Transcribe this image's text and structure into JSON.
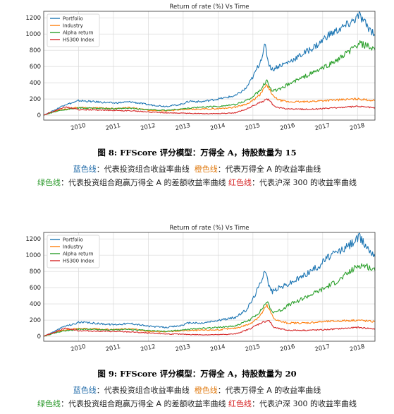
{
  "chart_data": [
    {
      "type": "line",
      "title": "Return of rate (%) Vs Time",
      "xlabel": "",
      "ylabel": "",
      "x_ticks": [
        "2010",
        "2011",
        "2012",
        "2013",
        "2014",
        "2015",
        "2016",
        "2017",
        "2018"
      ],
      "xlim": [
        2009.0,
        2018.5
      ],
      "ylim": [
        -60,
        1280
      ],
      "y_ticks": [
        0,
        200,
        400,
        600,
        800,
        1000,
        1200
      ],
      "grid": true,
      "legend": "top-left",
      "series": [
        {
          "name": "Portfolio",
          "color": "#1f77b4",
          "x": [
            2009.0,
            2009.3,
            2009.6,
            2009.9,
            2010.0,
            2010.5,
            2011.0,
            2011.5,
            2012.0,
            2012.5,
            2012.9,
            2013.2,
            2013.5,
            2014.0,
            2014.5,
            2014.8,
            2015.0,
            2015.2,
            2015.35,
            2015.45,
            2015.55,
            2015.7,
            2016.0,
            2016.3,
            2016.6,
            2016.9,
            2017.1,
            2017.4,
            2017.7,
            2017.9,
            2018.05,
            2018.2,
            2018.35,
            2018.5
          ],
          "y": [
            0,
            60,
            130,
            160,
            180,
            165,
            150,
            165,
            130,
            110,
            130,
            175,
            165,
            200,
            240,
            330,
            470,
            650,
            860,
            640,
            560,
            600,
            650,
            720,
            800,
            880,
            970,
            1040,
            1110,
            1170,
            1230,
            1140,
            1060,
            1000
          ]
        },
        {
          "name": "Industry",
          "color": "#ff7f0e",
          "x": [
            2009.0,
            2009.4,
            2009.9,
            2010.5,
            2011.0,
            2011.5,
            2012.0,
            2012.5,
            2013.0,
            2013.5,
            2014.0,
            2014.5,
            2014.9,
            2015.2,
            2015.4,
            2015.6,
            2015.8,
            2016.0,
            2016.5,
            2017.0,
            2017.5,
            2018.0,
            2018.5
          ],
          "y": [
            0,
            60,
            95,
            90,
            85,
            95,
            60,
            55,
            70,
            75,
            80,
            100,
            150,
            250,
            380,
            220,
            180,
            165,
            165,
            180,
            190,
            200,
            180
          ]
        },
        {
          "name": "Alpha return",
          "color": "#2ca02c",
          "x": [
            2009.0,
            2009.3,
            2009.6,
            2009.9,
            2010.0,
            2010.5,
            2011.0,
            2011.5,
            2012.0,
            2012.5,
            2013.0,
            2013.5,
            2014.0,
            2014.5,
            2014.9,
            2015.2,
            2015.4,
            2015.55,
            2015.8,
            2016.0,
            2016.5,
            2017.0,
            2017.5,
            2017.8,
            2018.05,
            2018.3,
            2018.5
          ],
          "y": [
            0,
            40,
            70,
            80,
            90,
            85,
            80,
            85,
            70,
            60,
            80,
            100,
            110,
            130,
            200,
            300,
            430,
            300,
            320,
            380,
            480,
            580,
            700,
            800,
            880,
            850,
            790
          ]
        },
        {
          "name": "HS300 Index",
          "color": "#d62728",
          "x": [
            2009.0,
            2009.3,
            2009.6,
            2009.9,
            2010.0,
            2010.5,
            2011.0,
            2011.5,
            2012.0,
            2012.5,
            2013.0,
            2013.5,
            2014.0,
            2014.5,
            2014.9,
            2015.2,
            2015.45,
            2015.6,
            2015.8,
            2016.0,
            2016.5,
            2017.0,
            2017.5,
            2018.0,
            2018.3,
            2018.5
          ],
          "y": [
            0,
            50,
            100,
            80,
            70,
            65,
            60,
            55,
            40,
            30,
            25,
            20,
            20,
            30,
            90,
            160,
            200,
            110,
            90,
            75,
            75,
            80,
            95,
            110,
            100,
            90
          ]
        }
      ]
    },
    {
      "type": "line",
      "title": "Return of rate (%) Vs Time",
      "xlabel": "",
      "ylabel": "",
      "x_ticks": [
        "2010",
        "2011",
        "2012",
        "2013",
        "2014",
        "2015",
        "2016",
        "2017",
        "2018"
      ],
      "xlim": [
        2009.0,
        2018.5
      ],
      "ylim": [
        -60,
        1280
      ],
      "y_ticks": [
        0,
        200,
        400,
        600,
        800,
        1000,
        1200
      ],
      "grid": true,
      "legend": "top-left",
      "series": [
        {
          "name": "Portfolio",
          "color": "#1f77b4",
          "x": [
            2009.0,
            2009.3,
            2009.6,
            2009.9,
            2010.0,
            2010.5,
            2011.0,
            2011.5,
            2012.0,
            2012.5,
            2012.9,
            2013.2,
            2013.5,
            2014.0,
            2014.5,
            2014.8,
            2015.0,
            2015.2,
            2015.35,
            2015.45,
            2015.55,
            2015.7,
            2016.0,
            2016.3,
            2016.6,
            2016.9,
            2017.1,
            2017.4,
            2017.7,
            2017.9,
            2018.05,
            2018.2,
            2018.35,
            2018.5
          ],
          "y": [
            0,
            60,
            125,
            155,
            175,
            160,
            145,
            160,
            125,
            110,
            130,
            170,
            160,
            195,
            235,
            320,
            460,
            640,
            840,
            630,
            550,
            590,
            640,
            710,
            790,
            870,
            960,
            1030,
            1100,
            1170,
            1220,
            1140,
            1060,
            1010
          ]
        },
        {
          "name": "Industry",
          "color": "#ff7f0e",
          "x": [
            2009.0,
            2009.4,
            2009.9,
            2010.5,
            2011.0,
            2011.5,
            2012.0,
            2012.5,
            2013.0,
            2013.5,
            2014.0,
            2014.5,
            2014.9,
            2015.2,
            2015.4,
            2015.6,
            2015.8,
            2016.0,
            2016.5,
            2017.0,
            2017.5,
            2018.0,
            2018.5
          ],
          "y": [
            0,
            60,
            95,
            90,
            85,
            95,
            60,
            55,
            70,
            75,
            80,
            100,
            150,
            250,
            380,
            220,
            180,
            165,
            165,
            180,
            190,
            200,
            180
          ]
        },
        {
          "name": "Alpha return",
          "color": "#2ca02c",
          "x": [
            2009.0,
            2009.3,
            2009.6,
            2009.9,
            2010.0,
            2010.5,
            2011.0,
            2011.5,
            2012.0,
            2012.5,
            2013.0,
            2013.5,
            2014.0,
            2014.5,
            2014.9,
            2015.2,
            2015.4,
            2015.55,
            2015.8,
            2016.0,
            2016.5,
            2017.0,
            2017.5,
            2017.8,
            2018.05,
            2018.3,
            2018.5
          ],
          "y": [
            0,
            40,
            70,
            80,
            90,
            85,
            80,
            85,
            70,
            60,
            80,
            100,
            110,
            130,
            200,
            300,
            430,
            300,
            320,
            380,
            480,
            580,
            700,
            800,
            880,
            860,
            800
          ]
        },
        {
          "name": "HS300 Index",
          "color": "#d62728",
          "x": [
            2009.0,
            2009.3,
            2009.6,
            2009.9,
            2010.0,
            2010.5,
            2011.0,
            2011.5,
            2012.0,
            2012.5,
            2013.0,
            2013.5,
            2014.0,
            2014.5,
            2014.9,
            2015.2,
            2015.45,
            2015.6,
            2015.8,
            2016.0,
            2016.5,
            2017.0,
            2017.5,
            2018.0,
            2018.3,
            2018.5
          ],
          "y": [
            0,
            50,
            100,
            80,
            70,
            65,
            60,
            55,
            40,
            30,
            25,
            20,
            20,
            30,
            90,
            160,
            200,
            110,
            90,
            75,
            75,
            80,
            95,
            110,
            100,
            90
          ]
        }
      ]
    }
  ],
  "figures": [
    {
      "caption": "图 8: FFScore 评分模型：万得全 A，持股数量为 15"
    },
    {
      "caption": "图 9: FFScore 评分模型：万得全 A，持股数量为 20"
    }
  ],
  "legend_desc": {
    "blue_label": "蓝色线",
    "blue_text": "：代表投资组合收益率曲线",
    "orange_label": "橙色线",
    "orange_text": "：代表万得全 A 的收益率曲线",
    "green_label": "绿色线",
    "green_text": "：代表投资组合跑赢万得全 A 的差额收益率曲线",
    "red_label": "红色线",
    "red_text": "：代表沪深 300 的收益率曲线"
  }
}
